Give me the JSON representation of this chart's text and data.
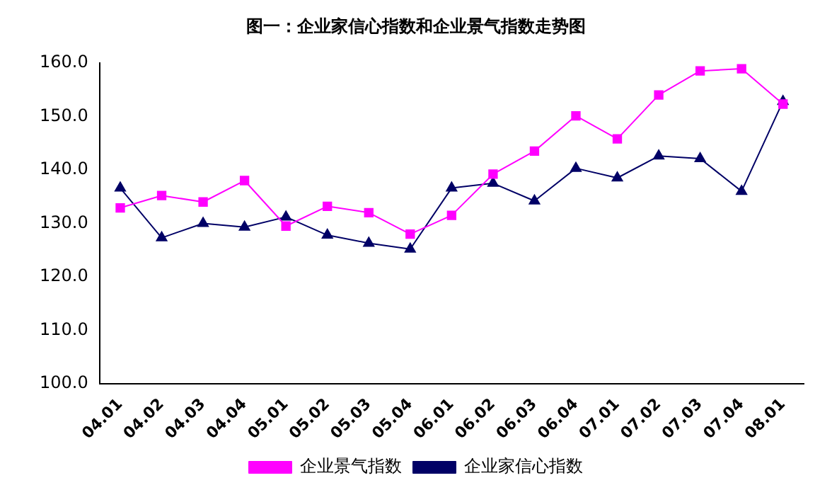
{
  "chart_data": {
    "type": "line",
    "title": "图一：企业家信心指数和企业景气指数走势图",
    "categories": [
      "04.01",
      "04.02",
      "04.03",
      "04.04",
      "05.01",
      "05.02",
      "05.03",
      "05.04",
      "06.01",
      "06.02",
      "06.03",
      "06.04",
      "07.01",
      "07.02",
      "07.03",
      "07.04",
      "08.01"
    ],
    "series": [
      {
        "name": "企业家信心指数",
        "color": "#000066",
        "marker": "triangle",
        "values": [
          136.6,
          127.3,
          130.0,
          129.3,
          131.2,
          127.8,
          126.3,
          125.2,
          136.6,
          137.5,
          134.2,
          140.3,
          138.5,
          142.6,
          142.1,
          136.0,
          152.8
        ]
      },
      {
        "name": "企业景气指数",
        "color": "#ff00ff",
        "marker": "square",
        "values": [
          132.9,
          135.2,
          134.0,
          138.0,
          129.5,
          133.2,
          132.0,
          128.0,
          131.5,
          139.2,
          143.5,
          150.1,
          145.8,
          154.0,
          158.5,
          158.9,
          152.3
        ]
      }
    ],
    "ylim": [
      100,
      160
    ],
    "yticks": [
      {
        "value": 100,
        "label": "100.0"
      },
      {
        "value": 110,
        "label": "110.0"
      },
      {
        "value": 120,
        "label": "120.0"
      },
      {
        "value": 130,
        "label": "130.0"
      },
      {
        "value": 140,
        "label": "140.0"
      },
      {
        "value": 150,
        "label": "150.0"
      },
      {
        "value": 160,
        "label": "160.0"
      }
    ],
    "grid": false,
    "legend": "bottom",
    "line_style": "solid"
  }
}
